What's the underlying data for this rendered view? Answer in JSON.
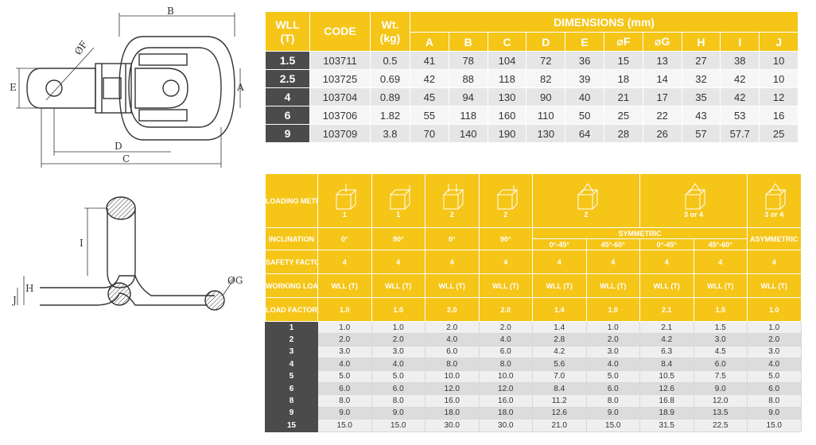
{
  "drawing_top": {
    "labels": {
      "B": "B",
      "A": "A",
      "E": "E",
      "F": "ØF",
      "D": "D",
      "C": "C"
    }
  },
  "drawing_side": {
    "labels": {
      "I": "I",
      "H": "H",
      "J": "J",
      "G": "ØG"
    }
  },
  "dimensions_table": {
    "headers": {
      "wll": "WLL",
      "wll_unit": "(T)",
      "code": "CODE",
      "wt": "Wt.",
      "wt_unit": "(kg)",
      "dimensions": "DIMENSIONS (mm)"
    },
    "columns": [
      "A",
      "B",
      "C",
      "D",
      "E",
      "⌀F",
      "⌀G",
      "H",
      "I",
      "J"
    ],
    "rows": [
      {
        "wll": "1.5",
        "code": "103711",
        "wt": "0.5",
        "dims": [
          "41",
          "78",
          "104",
          "72",
          "36",
          "15",
          "13",
          "27",
          "38",
          "10"
        ]
      },
      {
        "wll": "2.5",
        "code": "103725",
        "wt": "0.69",
        "dims": [
          "42",
          "88",
          "118",
          "82",
          "39",
          "18",
          "14",
          "32",
          "42",
          "10"
        ]
      },
      {
        "wll": "4",
        "code": "103704",
        "wt": "0.89",
        "dims": [
          "45",
          "94",
          "130",
          "90",
          "40",
          "21",
          "17",
          "35",
          "42",
          "12"
        ]
      },
      {
        "wll": "6",
        "code": "103706",
        "wt": "1.82",
        "dims": [
          "55",
          "118",
          "160",
          "110",
          "50",
          "25",
          "22",
          "43",
          "53",
          "16"
        ]
      },
      {
        "wll": "9",
        "code": "103709",
        "wt": "3.8",
        "dims": [
          "70",
          "140",
          "190",
          "130",
          "64",
          "28",
          "26",
          "57",
          "57.7",
          "25"
        ]
      }
    ]
  },
  "load_table": {
    "row_labels": {
      "loading_method": "LOADING METHOD",
      "inclination": "INCLINATION",
      "safety_factor": "SAFETY FACTOR",
      "working_load_limit": "WORKING LOAD LIMIT",
      "load_factor": "LOAD FACTOR"
    },
    "loading_methods": [
      {
        "icon": "cube-vertical-lift-icon",
        "count": "1"
      },
      {
        "icon": "cube-side-lift-icon",
        "count": "1"
      },
      {
        "icon": "cube-two-vertical-lift-icon",
        "count": "2"
      },
      {
        "icon": "cube-two-side-lift-icon",
        "count": "2"
      },
      {
        "icon": "cube-two-leg-sling-icon",
        "count": "2"
      },
      {
        "icon": "cube-four-leg-sling-icon",
        "count": "3 or 4"
      },
      {
        "icon": "cube-asymmetric-sling-icon",
        "count": "3 or 4"
      }
    ],
    "inclination": {
      "cols": [
        "0°",
        "90°",
        "0°",
        "90°"
      ],
      "symmetric": "SYMMETRIC",
      "symmetric_cols": [
        "0°-45°",
        "45°-60°",
        "0°-45°",
        "45°-60°"
      ],
      "asymmetric": "ASYMMETRIC"
    },
    "safety_factor": [
      "4",
      "4",
      "4",
      "4",
      "4",
      "4",
      "4",
      "4",
      "4"
    ],
    "working_load_limit": [
      "WLL (T)",
      "WLL (T)",
      "WLL (T)",
      "WLL (T)",
      "WLL (T)",
      "WLL (T)",
      "WLL (T)",
      "WLL (T)",
      "WLL (T)"
    ],
    "load_factor": [
      "1.0",
      "1.0",
      "2.0",
      "2.0",
      "1.4",
      "1.0",
      "2.1",
      "1.5",
      "1.0"
    ],
    "rows": [
      {
        "wll": "1",
        "values": [
          "1.0",
          "1.0",
          "2.0",
          "2.0",
          "1.4",
          "1.0",
          "2.1",
          "1.5",
          "1.0"
        ]
      },
      {
        "wll": "2",
        "values": [
          "2.0",
          "2.0",
          "4.0",
          "4.0",
          "2.8",
          "2.0",
          "4.2",
          "3.0",
          "2.0"
        ]
      },
      {
        "wll": "3",
        "values": [
          "3.0",
          "3.0",
          "6.0",
          "6.0",
          "4.2",
          "3.0",
          "6.3",
          "4.5",
          "3.0"
        ]
      },
      {
        "wll": "4",
        "values": [
          "4.0",
          "4.0",
          "8.0",
          "8.0",
          "5.6",
          "4.0",
          "8.4",
          "6.0",
          "4.0"
        ]
      },
      {
        "wll": "5",
        "values": [
          "5.0",
          "5.0",
          "10.0",
          "10.0",
          "7.0",
          "5.0",
          "10.5",
          "7.5",
          "5.0"
        ]
      },
      {
        "wll": "6",
        "values": [
          "6.0",
          "6.0",
          "12.0",
          "12.0",
          "8.4",
          "6.0",
          "12.6",
          "9.0",
          "6.0"
        ]
      },
      {
        "wll": "8",
        "values": [
          "8.0",
          "8.0",
          "16.0",
          "16.0",
          "11.2",
          "8.0",
          "16.8",
          "12.0",
          "8.0"
        ]
      },
      {
        "wll": "9",
        "values": [
          "9.0",
          "9.0",
          "18.0",
          "18.0",
          "12.6",
          "9.0",
          "18.9",
          "13.5",
          "9.0"
        ]
      },
      {
        "wll": "15",
        "values": [
          "15.0",
          "15.0",
          "30.0",
          "30.0",
          "21.0",
          "15.0",
          "31.5",
          "22.5",
          "15.0"
        ]
      }
    ]
  },
  "colors": {
    "header_yellow": "#f5c518",
    "row_dark": "#4b4b4b",
    "row_light": "#efefef",
    "row_mid": "#dcdcdc"
  }
}
